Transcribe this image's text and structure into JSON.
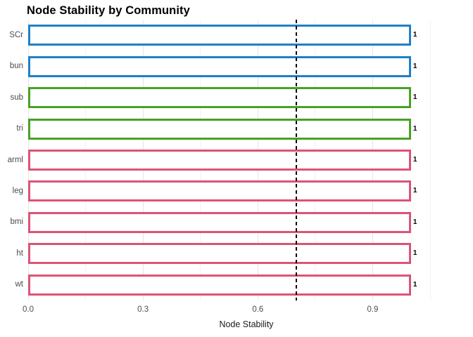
{
  "chart_data": {
    "type": "bar",
    "orientation": "horizontal",
    "title": "Node Stability by Community",
    "xlabel": "Node Stability",
    "ylabel": "",
    "categories": [
      "SCr",
      "bun",
      "sub",
      "tri",
      "arml",
      "leg",
      "bmi",
      "ht",
      "wt"
    ],
    "values": [
      1,
      1,
      1,
      1,
      1,
      1,
      1,
      1,
      1
    ],
    "bar_labels": [
      "1",
      "1",
      "1",
      "1",
      "1",
      "1",
      "1",
      "1",
      "1"
    ],
    "communities": [
      {
        "color": "#1E80C8",
        "members": [
          "SCr",
          "bun"
        ]
      },
      {
        "color": "#47A224",
        "members": [
          "sub",
          "tri"
        ]
      },
      {
        "color": "#DC5377",
        "members": [
          "arml",
          "leg",
          "bmi",
          "ht",
          "wt"
        ]
      }
    ],
    "bar_color_by_category": [
      "#1E80C8",
      "#1E80C8",
      "#47A224",
      "#47A224",
      "#DC5377",
      "#DC5377",
      "#DC5377",
      "#DC5377",
      "#DC5377"
    ],
    "bar_fill": "#FFFFFF",
    "xlim": [
      0,
      1.14
    ],
    "xticks": {
      "values": [
        0,
        0.3,
        0.6,
        0.9
      ],
      "labels": [
        "0.0",
        "0.3",
        "0.6",
        "0.9"
      ]
    },
    "minor_ticks": [
      0.15,
      0.45,
      0.75,
      1.05
    ],
    "reference_line": {
      "x": 0.7,
      "style": "dashed",
      "color": "#000000"
    },
    "grid": {
      "show": true,
      "direction": "vertical",
      "legend_position": "none"
    }
  },
  "colors": {
    "title_text": "#000000",
    "axis_text": "#4D4D4D",
    "axis_title_text": "#1A1A1A",
    "grid_major": "#E5E5E5",
    "grid_minor": "#F2F2F2",
    "reference_line": "#000000",
    "background": "#FFFFFF"
  }
}
